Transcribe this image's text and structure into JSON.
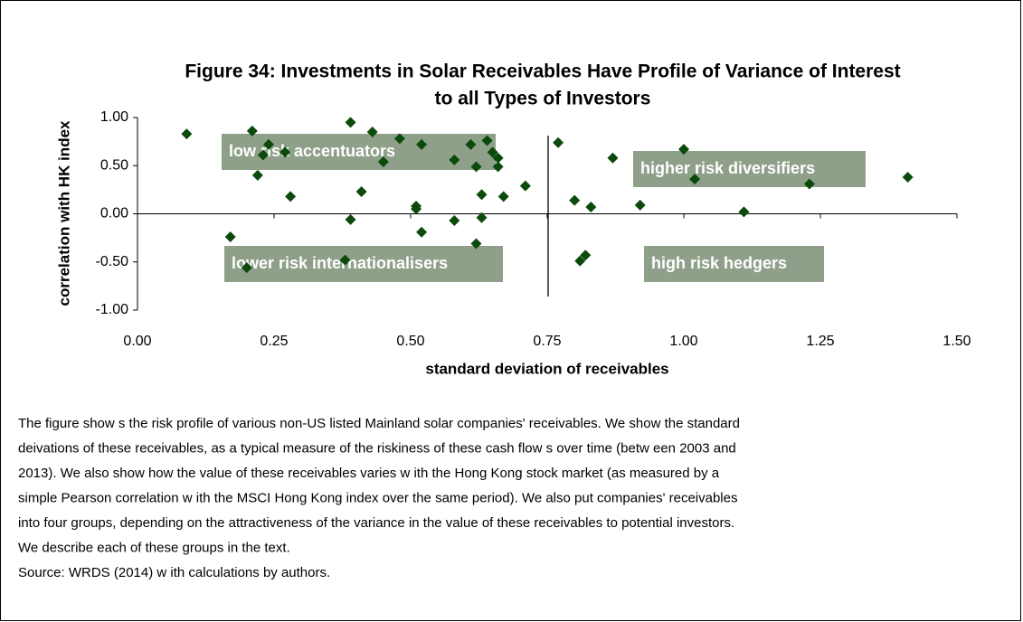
{
  "chart_data": {
    "type": "scatter",
    "title": [
      "Figure 34: Investments in Solar Receivables Have Profile of Variance of Interest",
      "to all Types of Investors"
    ],
    "x_label": "standard deviation of receivables",
    "y_label": "correlation with HK index",
    "color": "#0b4a0b",
    "xlim": [
      0,
      1.5
    ],
    "ylim": [
      -1,
      1
    ],
    "xticks": [
      {
        "value": 0,
        "label": "0.00"
      },
      {
        "value": 0.25,
        "label": "0.25"
      },
      {
        "value": 0.5,
        "label": "0.50"
      },
      {
        "value": 0.75,
        "label": "0.75"
      },
      {
        "value": 1,
        "label": "1.00"
      },
      {
        "value": 1.25,
        "label": "1.25"
      },
      {
        "value": 1.5,
        "label": "1.50"
      }
    ],
    "yticks": [
      {
        "value": 1,
        "label": "1.00"
      },
      {
        "value": 0.5,
        "label": "0.50"
      },
      {
        "value": 0,
        "label": "0.00"
      },
      {
        "value": -0.5,
        "label": "-0.50"
      },
      {
        "value": -1,
        "label": "-1.00"
      }
    ],
    "annotations": [
      "low risk accentuators",
      "higher risk diversifiers",
      "lower risk internationalisers",
      "high risk hedgers"
    ],
    "x": [
      0.09,
      0.17,
      0.21,
      0.22,
      0.23,
      0.24,
      0.27,
      0.2,
      0.28,
      0.39,
      0.39,
      0.38,
      0.41,
      0.43,
      0.45,
      0.48,
      0.51,
      0.51,
      0.52,
      0.52,
      0.58,
      0.58,
      0.61,
      0.62,
      0.62,
      0.63,
      0.63,
      0.64,
      0.65,
      0.66,
      0.66,
      0.67,
      0.71,
      0.77,
      0.8,
      0.81,
      0.82,
      0.83,
      0.87,
      0.92,
      1.0,
      1.02,
      1.11,
      1.23,
      1.41
    ],
    "values": [
      0.83,
      -0.24,
      0.86,
      0.4,
      0.61,
      0.72,
      0.64,
      -0.56,
      0.18,
      0.95,
      -0.06,
      -0.48,
      0.23,
      0.85,
      0.54,
      0.78,
      0.05,
      0.08,
      -0.19,
      0.72,
      -0.07,
      0.56,
      0.72,
      -0.31,
      0.49,
      0.2,
      -0.04,
      0.76,
      0.64,
      0.49,
      0.58,
      0.18,
      0.29,
      0.74,
      0.14,
      -0.49,
      -0.43,
      0.07,
      0.58,
      0.09,
      0.67,
      0.36,
      0.02,
      0.31,
      0.38
    ]
  },
  "caption": [
    "The figure show s the risk profile of various non-US listed Mainland solar companies' receivables. We show  the standard",
    "deivations of these receivables, as a typical measure of the riskiness of these cash flow s over time (betw een 2003 and",
    "2013). We also show  how  the value of these receivables varies w ith the Hong Kong stock market (as measured by a",
    "simple Pearson correlation w ith the MSCI Hong Kong index over the same period). We also put companies' receivables",
    "into four groups, depending on the attractiveness of the variance in the value of these receivables to potential investors.",
    "We describe each of these groups in the text.",
    "Source: WRDS (2014) w ith calculations by authors."
  ]
}
